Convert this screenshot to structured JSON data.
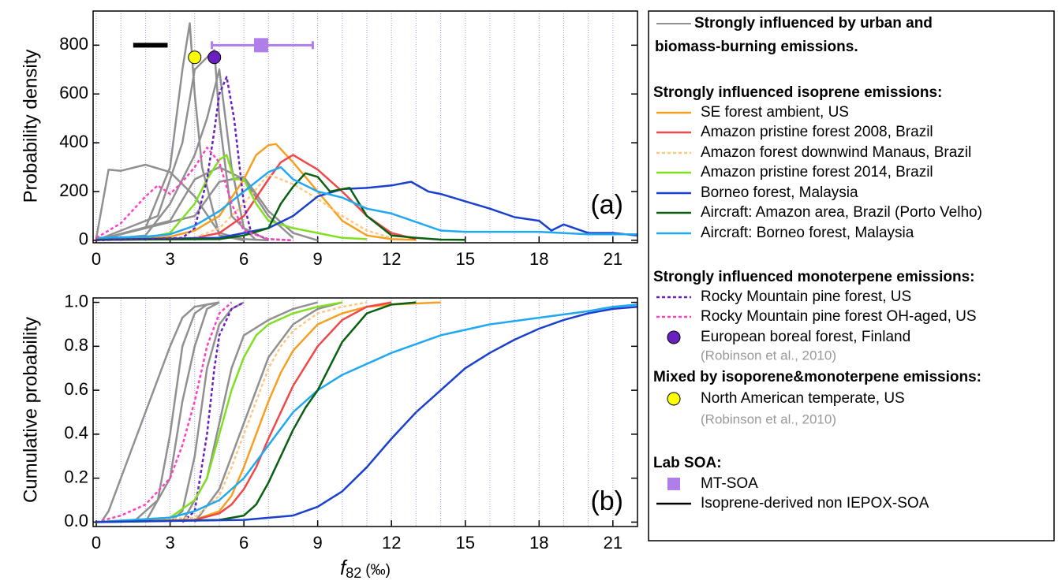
{
  "chart_data": [
    {
      "type": "line",
      "ylabel": "Probability density",
      "label": "(a)",
      "xlim": [
        -0.13,
        22
      ],
      "ylim": [
        -10,
        940
      ],
      "xticks": [
        0,
        3,
        6,
        9,
        12,
        15,
        18,
        21
      ],
      "yticks": [
        0,
        200,
        400,
        600,
        800
      ],
      "xgrid": [
        1,
        2,
        4,
        5,
        7,
        8,
        10,
        11,
        13,
        14,
        16,
        17,
        19,
        20,
        22
      ],
      "grid_color": "#9a9ae0",
      "series": [
        {
          "color": "#909090",
          "x": [
            0,
            0.5,
            1,
            2,
            3,
            4,
            5,
            6,
            7
          ],
          "values": [
            10,
            290,
            285,
            310,
            280,
            180,
            30,
            5,
            0
          ]
        },
        {
          "color": "#909090",
          "x": [
            0,
            2,
            3,
            3.5,
            3.8,
            4,
            4.3,
            5,
            6
          ],
          "values": [
            0,
            50,
            300,
            700,
            890,
            600,
            300,
            20,
            0
          ]
        },
        {
          "color": "#909090",
          "x": [
            0,
            2.5,
            3,
            3.5,
            4,
            4.5,
            4.8,
            5,
            5.5,
            6.5
          ],
          "values": [
            0,
            100,
            250,
            400,
            700,
            750,
            780,
            500,
            100,
            0
          ]
        },
        {
          "color": "#909090",
          "x": [
            0,
            2,
            3,
            4,
            4.5,
            5,
            5.5,
            6,
            7
          ],
          "values": [
            0,
            20,
            150,
            350,
            500,
            700,
            300,
            50,
            0
          ]
        },
        {
          "color": "#909090",
          "x": [
            0,
            4,
            5,
            6,
            7,
            8,
            9
          ],
          "values": [
            0,
            100,
            240,
            260,
            120,
            30,
            0
          ]
        },
        {
          "color": "#909090",
          "x": [
            0,
            3,
            4,
            5,
            6,
            7,
            8
          ],
          "values": [
            0,
            80,
            250,
            300,
            250,
            100,
            10
          ]
        },
        {
          "color": "#f5a020",
          "x": [
            0,
            2,
            3,
            4,
            5,
            6,
            6.5,
            7,
            7.3,
            8,
            9,
            10,
            11,
            12,
            13
          ],
          "values": [
            5,
            8,
            15,
            40,
            100,
            250,
            350,
            390,
            395,
            320,
            200,
            80,
            20,
            5,
            2
          ]
        },
        {
          "color": "#f04848",
          "x": [
            0,
            3,
            4,
            5,
            6,
            7,
            7.5,
            8,
            8.5,
            9,
            10,
            11,
            12,
            13
          ],
          "values": [
            2,
            5,
            10,
            30,
            100,
            250,
            320,
            350,
            320,
            290,
            200,
            100,
            30,
            5
          ]
        },
        {
          "color": "#ffc880",
          "dash": true,
          "x": [
            0,
            4,
            5,
            6,
            7,
            8,
            9,
            10,
            11,
            12
          ],
          "values": [
            2,
            10,
            50,
            150,
            270,
            230,
            170,
            100,
            40,
            10
          ]
        },
        {
          "color": "#80e020",
          "x": [
            0,
            2,
            3,
            4,
            4.5,
            5,
            5.3,
            5.6,
            6,
            6.5,
            7,
            8,
            9,
            10,
            11
          ],
          "values": [
            5,
            10,
            30,
            150,
            250,
            330,
            350,
            250,
            250,
            150,
            80,
            50,
            30,
            10,
            5
          ]
        },
        {
          "color": "#1a40d0",
          "x": [
            0,
            5,
            6,
            7,
            8,
            9,
            10,
            11,
            12,
            12.8,
            13.5,
            14,
            15,
            16,
            17,
            18,
            18.5,
            19,
            20,
            21,
            22
          ],
          "values": [
            3,
            10,
            30,
            50,
            100,
            180,
            210,
            215,
            225,
            240,
            200,
            190,
            160,
            130,
            95,
            80,
            40,
            65,
            30,
            30,
            20
          ]
        },
        {
          "color": "#0a6010",
          "x": [
            0,
            5,
            6,
            7,
            7.5,
            8,
            8.5,
            9,
            9.5,
            10,
            10.3,
            11,
            12,
            13,
            14,
            15
          ],
          "values": [
            2,
            5,
            20,
            50,
            150,
            220,
            275,
            260,
            200,
            210,
            215,
            100,
            20,
            10,
            3,
            2
          ]
        },
        {
          "color": "#20a8f0",
          "x": [
            0,
            2,
            3,
            4,
            5,
            6,
            7,
            7.5,
            8,
            9,
            10,
            11,
            12,
            13,
            14,
            15,
            16,
            18,
            20,
            22
          ],
          "values": [
            10,
            15,
            25,
            60,
            120,
            200,
            280,
            300,
            250,
            200,
            175,
            130,
            110,
            75,
            40,
            35,
            35,
            35,
            25,
            25
          ]
        },
        {
          "color": "#6a20c0",
          "dash": true,
          "x": [
            0,
            3.5,
            4,
            4.5,
            4.8,
            5,
            5.3,
            5.6,
            6,
            6.3,
            7,
            8
          ],
          "values": [
            0,
            10,
            50,
            250,
            450,
            600,
            670,
            500,
            150,
            30,
            5,
            0
          ]
        },
        {
          "color": "#ff40c0",
          "dash": true,
          "x": [
            0,
            1,
            2,
            2.5,
            3,
            3.5,
            4,
            4.5,
            5,
            5.5,
            6,
            7,
            8
          ],
          "values": [
            10,
            70,
            180,
            225,
            190,
            240,
            300,
            380,
            320,
            150,
            40,
            5,
            0
          ]
        }
      ],
      "points": [
        {
          "shape": "circle",
          "color": "#ffff00",
          "x": 4.0,
          "y": 750
        },
        {
          "shape": "circle",
          "color": "#6a20c0",
          "x": 4.8,
          "y": 750
        },
        {
          "shape": "square",
          "color": "#b07ee8",
          "x": 6.7,
          "y": 800,
          "xmin": 4.7,
          "xmax": 8.8
        },
        {
          "shape": "segment",
          "color": "#000000",
          "y": 800,
          "xmin": 1.5,
          "xmax": 2.9
        }
      ]
    },
    {
      "type": "line",
      "ylabel": "Cumulative probability",
      "label": "(b)",
      "xlim": [
        -0.13,
        22
      ],
      "ylim": [
        -0.02,
        1.02
      ],
      "xticks": [
        0,
        3,
        6,
        9,
        12,
        15,
        18,
        21
      ],
      "yticks": [
        {
          "value": 0,
          "label": "0.0"
        },
        0.2,
        0.4,
        0.6,
        0.8,
        {
          "value": 1,
          "label": "1.0"
        }
      ],
      "xgrid": [
        1,
        2,
        4,
        5,
        7,
        8,
        10,
        11,
        13,
        14,
        16,
        17,
        19,
        20,
        22
      ],
      "grid_color": "#9a9ae0",
      "series": [
        {
          "color": "#909090",
          "x": [
            0.2,
            0.5,
            1,
            2,
            3,
            3.5,
            4,
            5
          ],
          "values": [
            0,
            0.05,
            0.2,
            0.5,
            0.8,
            0.93,
            0.98,
            1
          ]
        },
        {
          "color": "#909090",
          "x": [
            1.5,
            2.5,
            3,
            3.5,
            4,
            4.5,
            5
          ],
          "values": [
            0,
            0.1,
            0.4,
            0.8,
            0.95,
            0.99,
            1
          ]
        },
        {
          "color": "#909090",
          "x": [
            2,
            3,
            3.5,
            4,
            4.5,
            5
          ],
          "values": [
            0,
            0.2,
            0.55,
            0.8,
            0.97,
            1
          ]
        },
        {
          "color": "#909090",
          "x": [
            3,
            3.5,
            4,
            4.5,
            5,
            5.5,
            6
          ],
          "values": [
            0,
            0.05,
            0.3,
            0.7,
            0.9,
            0.97,
            1
          ]
        },
        {
          "color": "#909090",
          "x": [
            3.5,
            4.5,
            5,
            5.5,
            6,
            7,
            8,
            9
          ],
          "values": [
            0,
            0.2,
            0.45,
            0.7,
            0.85,
            0.92,
            0.97,
            1
          ]
        },
        {
          "color": "#909090",
          "x": [
            4,
            5,
            6,
            6.5,
            7,
            8,
            9,
            10
          ],
          "values": [
            0,
            0.15,
            0.45,
            0.6,
            0.75,
            0.9,
            0.97,
            1
          ]
        },
        {
          "color": "#6a20c0",
          "dash": true,
          "x": [
            3.5,
            4,
            4.5,
            4.8,
            5,
            5.5,
            6
          ],
          "values": [
            0,
            0.05,
            0.4,
            0.7,
            0.85,
            0.97,
            1
          ]
        },
        {
          "color": "#ff40c0",
          "dash": true,
          "x": [
            0,
            1,
            2,
            3,
            3.5,
            4,
            4.5,
            5,
            5.5
          ],
          "values": [
            0,
            0.03,
            0.08,
            0.2,
            0.35,
            0.55,
            0.8,
            0.95,
            1
          ]
        },
        {
          "color": "#80e020",
          "x": [
            0,
            3,
            4,
            4.5,
            5,
            5.5,
            6,
            6.5,
            7,
            8,
            9,
            10
          ],
          "values": [
            0,
            0.02,
            0.1,
            0.2,
            0.4,
            0.6,
            0.75,
            0.85,
            0.9,
            0.95,
            0.98,
            1
          ]
        },
        {
          "color": "#ffc880",
          "dash": true,
          "x": [
            0,
            4,
            5,
            5.5,
            6,
            6.5,
            7,
            7.5,
            8,
            9,
            10,
            11
          ],
          "values": [
            0,
            0.02,
            0.12,
            0.25,
            0.4,
            0.55,
            0.7,
            0.8,
            0.87,
            0.95,
            0.98,
            1
          ]
        },
        {
          "color": "#f5a020",
          "x": [
            0,
            4,
            5,
            5.5,
            6,
            6.5,
            7,
            7.5,
            8,
            9,
            10,
            11,
            12,
            14
          ],
          "values": [
            0,
            0.01,
            0.05,
            0.12,
            0.25,
            0.4,
            0.55,
            0.68,
            0.78,
            0.9,
            0.95,
            0.98,
            0.99,
            1
          ]
        },
        {
          "color": "#f04848",
          "x": [
            0,
            4,
            5,
            5.5,
            6,
            6.5,
            7,
            7.5,
            8,
            9,
            10,
            11,
            12
          ],
          "values": [
            0,
            0.01,
            0.04,
            0.08,
            0.15,
            0.25,
            0.38,
            0.5,
            0.62,
            0.8,
            0.92,
            0.98,
            1
          ]
        },
        {
          "color": "#20a8f0",
          "x": [
            0,
            3,
            4,
            5,
            6,
            7,
            8,
            9,
            10,
            12,
            14,
            16,
            18,
            20,
            21,
            22
          ],
          "values": [
            0,
            0.02,
            0.05,
            0.1,
            0.2,
            0.35,
            0.5,
            0.6,
            0.67,
            0.77,
            0.85,
            0.9,
            0.93,
            0.96,
            0.98,
            0.99
          ]
        },
        {
          "color": "#0a6010",
          "x": [
            0,
            5,
            6,
            6.5,
            7,
            7.5,
            8,
            8.5,
            9,
            10,
            11,
            12,
            13
          ],
          "values": [
            0,
            0.01,
            0.03,
            0.08,
            0.18,
            0.3,
            0.42,
            0.52,
            0.6,
            0.82,
            0.95,
            0.99,
            1
          ]
        },
        {
          "color": "#1a40d0",
          "x": [
            0,
            6,
            8,
            9,
            10,
            11,
            12,
            13,
            14,
            15,
            16,
            17,
            18,
            19,
            20,
            21,
            22
          ],
          "values": [
            0,
            0.01,
            0.03,
            0.07,
            0.14,
            0.25,
            0.38,
            0.5,
            0.6,
            0.7,
            0.77,
            0.83,
            0.88,
            0.92,
            0.95,
            0.97,
            0.98
          ]
        }
      ]
    }
  ],
  "xlabel": {
    "symbol": "f",
    "sub": "82",
    "unit": "(‰)"
  },
  "legend": [
    {
      "kind": "line",
      "bold": true,
      "color": "#909090",
      "text": [
        "Strongly influenced by urban and",
        "biomass-burning emissions."
      ]
    },
    {
      "kind": "header",
      "text": "Strongly influenced isoprene emissions:"
    },
    {
      "kind": "line",
      "color": "#f5a020",
      "text": "SE forest ambient, US"
    },
    {
      "kind": "line",
      "color": "#f04848",
      "text": "Amazon pristine forest 2008, Brazil"
    },
    {
      "kind": "line",
      "color": "#ffc880",
      "dash": true,
      "text": "Amazon forest downwind Manaus, Brazil"
    },
    {
      "kind": "line",
      "color": "#80e020",
      "text": "Amazon pristine forest 2014, Brazil"
    },
    {
      "kind": "line",
      "color": "#1a40d0",
      "text": "Borneo forest, Malaysia"
    },
    {
      "kind": "line",
      "color": "#0a6010",
      "text": "Aircraft: Amazon area, Brazil (Porto Velho)"
    },
    {
      "kind": "line",
      "color": "#20a8f0",
      "text": "Aircraft: Borneo forest, Malaysia"
    },
    {
      "kind": "header",
      "text": "Strongly influenced monoterpene emissions:"
    },
    {
      "kind": "line",
      "color": "#6a20c0",
      "dash": true,
      "text": "Rocky Mountain pine forest, US"
    },
    {
      "kind": "line",
      "color": "#ff40c0",
      "dash": true,
      "text": "Rocky Mountain pine forest OH-aged, US"
    },
    {
      "kind": "circle",
      "color": "#6a20c0",
      "text": "European boreal forest, Finland"
    },
    {
      "kind": "note",
      "text": "(Robinson et al., 2010)"
    },
    {
      "kind": "header",
      "text": "Mixed by isoporene&monoterpene emissions:"
    },
    {
      "kind": "circle",
      "color": "#ffff00",
      "text": "North American temperate, US"
    },
    {
      "kind": "note",
      "text": "(Robinson et al., 2010)"
    },
    {
      "kind": "header",
      "text": "Lab SOA:"
    },
    {
      "kind": "square",
      "color": "#b07ee8",
      "text": "MT-SOA"
    },
    {
      "kind": "line",
      "color": "#000000",
      "text": "Isoprene-derived non IEPOX-SOA"
    }
  ]
}
